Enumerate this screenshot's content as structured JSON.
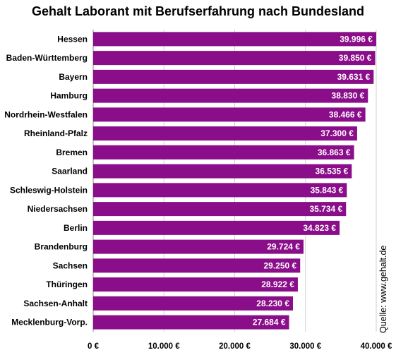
{
  "chart_data": {
    "type": "bar",
    "orientation": "horizontal",
    "title": "Gehalt Laborant mit Berufserfahrung nach Bundesland",
    "categories": [
      "Hessen",
      "Baden-Württemberg",
      "Bayern",
      "Hamburg",
      "Nordrhein-Westfalen",
      "Rheinland-Pfalz",
      "Bremen",
      "Saarland",
      "Schleswig-Holstein",
      "Niedersachsen",
      "Berlin",
      "Brandenburg",
      "Sachsen",
      "Thüringen",
      "Sachsen-Anhalt",
      "Mecklenburg-Vorp."
    ],
    "values": [
      39996,
      39850,
      39631,
      38830,
      38466,
      37300,
      36863,
      36535,
      35843,
      35734,
      34823,
      29724,
      29250,
      28922,
      28230,
      27684
    ],
    "value_labels": [
      "39.996 €",
      "39.850 €",
      "39.631 €",
      "38.830 €",
      "38.466 €",
      "37.300 €",
      "36.863 €",
      "36.535 €",
      "35.843 €",
      "35.734 €",
      "34.823 €",
      "29.724 €",
      "29.250 €",
      "28.922 €",
      "28.230 €",
      "27.684 €"
    ],
    "xlim": [
      0,
      40000
    ],
    "x_ticks": [
      0,
      10000,
      20000,
      30000,
      40000
    ],
    "x_tick_labels": [
      "0 €",
      "10.000 €",
      "20.000 €",
      "30.000 €",
      "40.000 €"
    ],
    "grid": true,
    "bar_color": "#8a0d8a",
    "source": "Quelle: www.gehalt.de"
  }
}
